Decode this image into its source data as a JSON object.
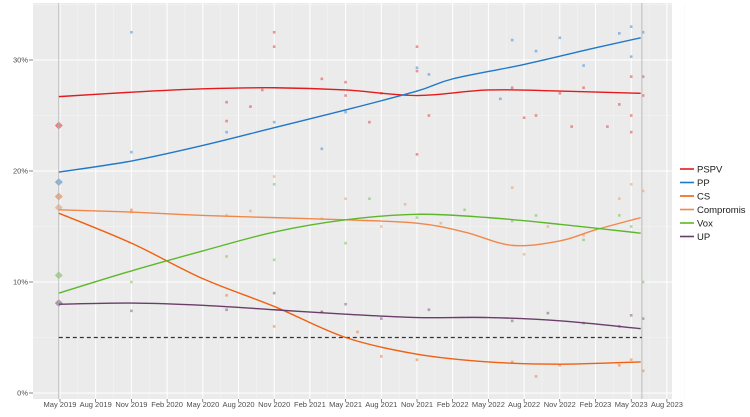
{
  "chart_data": {
    "type": "scatter",
    "title": "",
    "xlabel": "",
    "ylabel": "",
    "x_unit": "months since Jan 2019",
    "xlim": [
      1.8,
      57.5
    ],
    "ylim": [
      -0.5,
      35.3
    ],
    "grid": true,
    "legend_position": "right",
    "y_ticks": [
      {
        "v": 0,
        "label": "0%"
      },
      {
        "v": 10,
        "label": "10%"
      },
      {
        "v": 20,
        "label": "20%"
      },
      {
        "v": 30,
        "label": "30%"
      }
    ],
    "x_ticks": [
      {
        "m": 4,
        "label": "May 2019"
      },
      {
        "m": 7,
        "label": "Aug 2019"
      },
      {
        "m": 10,
        "label": "Nov 2019"
      },
      {
        "m": 13,
        "label": "Feb 2020"
      },
      {
        "m": 16,
        "label": "May 2020"
      },
      {
        "m": 19,
        "label": "Aug 2020"
      },
      {
        "m": 22,
        "label": "Nov 2020"
      },
      {
        "m": 25,
        "label": "Feb 2021"
      },
      {
        "m": 28,
        "label": "May 2021"
      },
      {
        "m": 31,
        "label": "Aug 2021"
      },
      {
        "m": 34,
        "label": "Nov 2021"
      },
      {
        "m": 37,
        "label": "Feb 2022"
      },
      {
        "m": 40,
        "label": "May 2022"
      },
      {
        "m": 43,
        "label": "Aug 2022"
      },
      {
        "m": 46,
        "label": "Nov 2022"
      },
      {
        "m": 49,
        "label": "Feb 2023"
      },
      {
        "m": 52,
        "label": "May 2023"
      },
      {
        "m": 55,
        "label": "Aug 2023"
      }
    ],
    "election_dates": [
      3.9,
      52.9
    ],
    "threshold": 5,
    "series": [
      {
        "name": "PSPV",
        "color": "#e41a1c",
        "election": 24.1,
        "trend": [
          [
            3.9,
            26.7
          ],
          [
            10,
            27.1
          ],
          [
            16,
            27.4
          ],
          [
            22,
            27.5
          ],
          [
            28,
            27.3
          ],
          [
            34,
            26.8
          ],
          [
            40,
            27.3
          ],
          [
            46,
            27.2
          ],
          [
            52.8,
            27.0
          ]
        ],
        "polls": [
          [
            18,
            26.2
          ],
          [
            18,
            24.5
          ],
          [
            20,
            25.8
          ],
          [
            21,
            27.3
          ],
          [
            22,
            32.5
          ],
          [
            22,
            31.2
          ],
          [
            26,
            28.3
          ],
          [
            28,
            28
          ],
          [
            28,
            26.8
          ],
          [
            30,
            24.4
          ],
          [
            31,
            27
          ],
          [
            34,
            31.2
          ],
          [
            34,
            21.5
          ],
          [
            34,
            29
          ],
          [
            35,
            25
          ],
          [
            42,
            27.5
          ],
          [
            43,
            24.8
          ],
          [
            44,
            25
          ],
          [
            46,
            27
          ],
          [
            47,
            24
          ],
          [
            48,
            27.5
          ],
          [
            50,
            24
          ],
          [
            51,
            26
          ],
          [
            52,
            25
          ],
          [
            52,
            28.5
          ],
          [
            52,
            23.5
          ],
          [
            53,
            26.8
          ],
          [
            53,
            28.5
          ]
        ]
      },
      {
        "name": "PP",
        "color": "#1f78c8",
        "election": 19.0,
        "trend": [
          [
            3.9,
            19.9
          ],
          [
            10,
            20.9
          ],
          [
            16,
            22.3
          ],
          [
            22,
            23.9
          ],
          [
            28,
            25.5
          ],
          [
            34,
            27.2
          ],
          [
            37,
            28.3
          ],
          [
            43,
            29.6
          ],
          [
            49,
            31.1
          ],
          [
            52.8,
            32.0
          ]
        ],
        "polls": [
          [
            10,
            32.5
          ],
          [
            10,
            21.7
          ],
          [
            18,
            23.5
          ],
          [
            22,
            24.4
          ],
          [
            26,
            22
          ],
          [
            28,
            25.3
          ],
          [
            34,
            29.3
          ],
          [
            35,
            28.7
          ],
          [
            41,
            26.5
          ],
          [
            42,
            31.8
          ],
          [
            44,
            30.8
          ],
          [
            46,
            32
          ],
          [
            48,
            29.5
          ],
          [
            51,
            32.4
          ],
          [
            52,
            33
          ],
          [
            53,
            32.5
          ],
          [
            52,
            30.3
          ]
        ]
      },
      {
        "name": "CS",
        "color": "#f06010",
        "election": 17.7,
        "trend": [
          [
            3.9,
            16.2
          ],
          [
            10,
            13.5
          ],
          [
            16,
            10.3
          ],
          [
            22,
            7.8
          ],
          [
            28,
            5.0
          ],
          [
            34,
            3.5
          ],
          [
            40,
            2.8
          ],
          [
            46,
            2.6
          ],
          [
            52.8,
            2.8
          ]
        ],
        "polls": [
          [
            10,
            16.5
          ],
          [
            18,
            8.8
          ],
          [
            22,
            6
          ],
          [
            26,
            7.3
          ],
          [
            29,
            5.5
          ],
          [
            31,
            3.3
          ],
          [
            34,
            3.0
          ],
          [
            42,
            2.8
          ],
          [
            44,
            1.5
          ],
          [
            46,
            2.5
          ],
          [
            51,
            2.5
          ],
          [
            52,
            3.0
          ],
          [
            53,
            2.0
          ]
        ]
      },
      {
        "name": "Compromis",
        "color": "#f0884a",
        "election": 16.7,
        "trend": [
          [
            3.9,
            16.5
          ],
          [
            10,
            16.3
          ],
          [
            16,
            16.0
          ],
          [
            22,
            15.8
          ],
          [
            28,
            15.6
          ],
          [
            34,
            15.3
          ],
          [
            38,
            14.5
          ],
          [
            42,
            13.3
          ],
          [
            46,
            13.7
          ],
          [
            49,
            14.7
          ],
          [
            52.8,
            15.8
          ]
        ],
        "polls": [
          [
            10,
            16.3
          ],
          [
            18,
            16
          ],
          [
            20,
            16.4
          ],
          [
            22,
            19.5
          ],
          [
            26,
            15.7
          ],
          [
            28,
            17.5
          ],
          [
            31,
            15
          ],
          [
            33,
            17
          ],
          [
            36,
            15.3
          ],
          [
            42,
            18.5
          ],
          [
            43,
            12.5
          ],
          [
            45,
            15
          ],
          [
            48,
            14.2
          ],
          [
            51,
            17.5
          ],
          [
            52,
            18.8
          ],
          [
            53,
            18.2
          ]
        ]
      },
      {
        "name": "Vox",
        "color": "#5cb82a",
        "election": 10.6,
        "trend": [
          [
            3.9,
            9.0
          ],
          [
            10,
            11.0
          ],
          [
            16,
            12.8
          ],
          [
            22,
            14.5
          ],
          [
            28,
            15.6
          ],
          [
            34,
            16.1
          ],
          [
            40,
            15.8
          ],
          [
            46,
            15.2
          ],
          [
            52.8,
            14.4
          ]
        ],
        "polls": [
          [
            10,
            10
          ],
          [
            18,
            12.3
          ],
          [
            22,
            12
          ],
          [
            22,
            18.8
          ],
          [
            28,
            13.5
          ],
          [
            30,
            17.5
          ],
          [
            34,
            15.8
          ],
          [
            38,
            16.5
          ],
          [
            42,
            15.5
          ],
          [
            44,
            16
          ],
          [
            48,
            13.8
          ],
          [
            51,
            16
          ],
          [
            52,
            15
          ],
          [
            53,
            10
          ]
        ]
      },
      {
        "name": "UP",
        "color": "#6a3d6a",
        "election": 8.1,
        "trend": [
          [
            3.9,
            8.0
          ],
          [
            10,
            8.1
          ],
          [
            16,
            7.9
          ],
          [
            22,
            7.5
          ],
          [
            28,
            7.1
          ],
          [
            34,
            6.8
          ],
          [
            40,
            6.8
          ],
          [
            46,
            6.5
          ],
          [
            52.8,
            5.8
          ]
        ],
        "polls": [
          [
            10,
            7.4
          ],
          [
            18,
            7.5
          ],
          [
            22,
            9
          ],
          [
            26,
            7.3
          ],
          [
            28,
            8
          ],
          [
            31,
            6.7
          ],
          [
            35,
            7.5
          ],
          [
            42,
            6.5
          ],
          [
            45,
            7.2
          ],
          [
            48,
            6.3
          ],
          [
            51,
            6
          ],
          [
            52,
            7
          ],
          [
            53,
            6.7
          ]
        ]
      }
    ]
  }
}
